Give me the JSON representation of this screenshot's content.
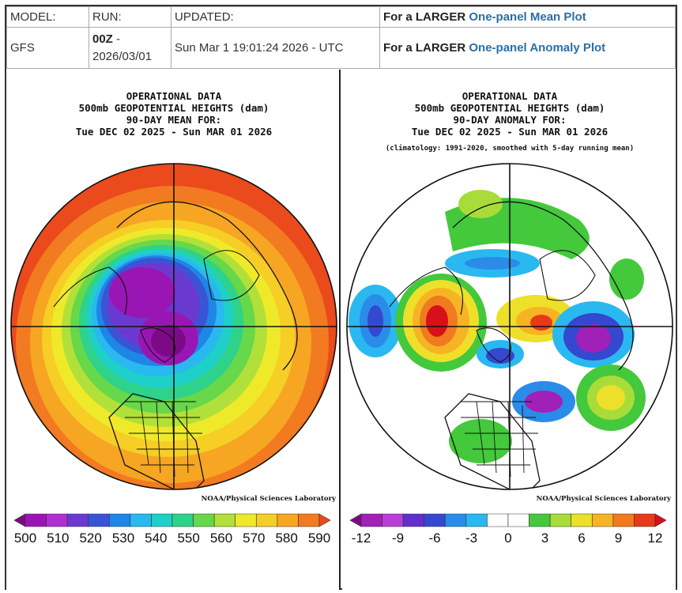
{
  "header": {
    "model_label": "MODEL:",
    "run_label": "RUN:",
    "updated_label": "UPDATED:",
    "larger_prefix": "For a LARGER",
    "mean_link": "One-panel Mean Plot",
    "anomaly_link": "One-panel Anomaly Plot",
    "model_value": "GFS",
    "run_value_bold": "00Z",
    "run_value_dash": " -",
    "run_value_date": "2026/03/01",
    "updated_value": "Sun Mar 1 19:01:24 2026 - UTC"
  },
  "left_plot": {
    "title_lines": [
      "OPERATIONAL DATA",
      "500mb GEOPOTENTIAL HEIGHTS (dam)",
      "90-DAY MEAN FOR:",
      "Tue DEC 02 2025 - Sun MAR 01 2026"
    ],
    "credit": "NOAA/Physical Sciences Laboratory",
    "colorbar_ticks": [
      "500",
      "510",
      "520",
      "530",
      "540",
      "550",
      "560",
      "570",
      "580",
      "590"
    ],
    "colorbar_colors": [
      "#7c0a86",
      "#9a16b4",
      "#b02ed2",
      "#6a3ad0",
      "#3a54d6",
      "#1e86e6",
      "#2ab8f0",
      "#1ed0c8",
      "#2ed28a",
      "#66d84a",
      "#b2e03a",
      "#eeea2a",
      "#f6ce26",
      "#f6a622",
      "#f27a20",
      "#ea4a1c"
    ]
  },
  "right_plot": {
    "title_lines": [
      "OPERATIONAL DATA",
      "500mb GEOPOTENTIAL HEIGHTS (dam)",
      "90-DAY ANOMALY FOR:",
      "Tue DEC 02 2025 - Sun MAR 01 2026"
    ],
    "subtitle": "(climatology: 1991-2020, smoothed with 5-day running mean)",
    "credit": "NOAA/Physical Sciences Laboratory",
    "colorbar_ticks": [
      "-12",
      "-9",
      "-6",
      "-3",
      "0",
      "3",
      "6",
      "9",
      "12"
    ],
    "colorbar_colors": [
      "#7c0a86",
      "#a020b8",
      "#b840d8",
      "#6030c8",
      "#3448d0",
      "#2a8ce8",
      "#2ab8f0",
      "#ffffff",
      "#ffffff",
      "#44c83c",
      "#a8dc3a",
      "#eee02a",
      "#f6b424",
      "#f07a1e",
      "#e83a18",
      "#d8101a"
    ]
  }
}
